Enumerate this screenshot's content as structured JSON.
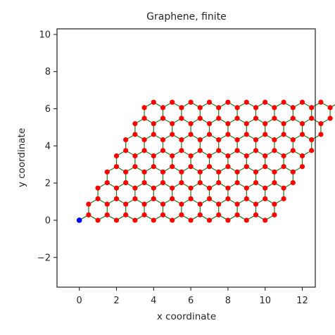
{
  "chart_data": {
    "type": "scatter",
    "title": "Graphene, finite",
    "xlabel": "x coordinate",
    "ylabel": "y coordinate",
    "xlim": [
      -1.2,
      12.7
    ],
    "ylim": [
      -3.6,
      10.3
    ],
    "xticks": [
      0,
      2,
      4,
      6,
      8,
      10,
      12
    ],
    "yticks": [
      -2,
      0,
      2,
      4,
      6,
      8,
      10
    ],
    "xtick_labels": [
      "0",
      "2",
      "4",
      "6",
      "8",
      "10",
      "12"
    ],
    "ytick_labels": [
      "−2",
      "0",
      "2",
      "4",
      "6",
      "8",
      "10"
    ],
    "grid": false,
    "lattice": {
      "a1": [
        1.0,
        0.0
      ],
      "a2": [
        0.5,
        0.866
      ],
      "basis_offset": [
        0.5,
        0.2887
      ],
      "n1": 11,
      "n2": 8
    },
    "special_point": {
      "x": 0,
      "y": 0
    },
    "colors": {
      "atoms": "#ff0000",
      "bonds": "#1a7a1a",
      "special_point": "#0000ff",
      "axes": "#262626"
    }
  }
}
